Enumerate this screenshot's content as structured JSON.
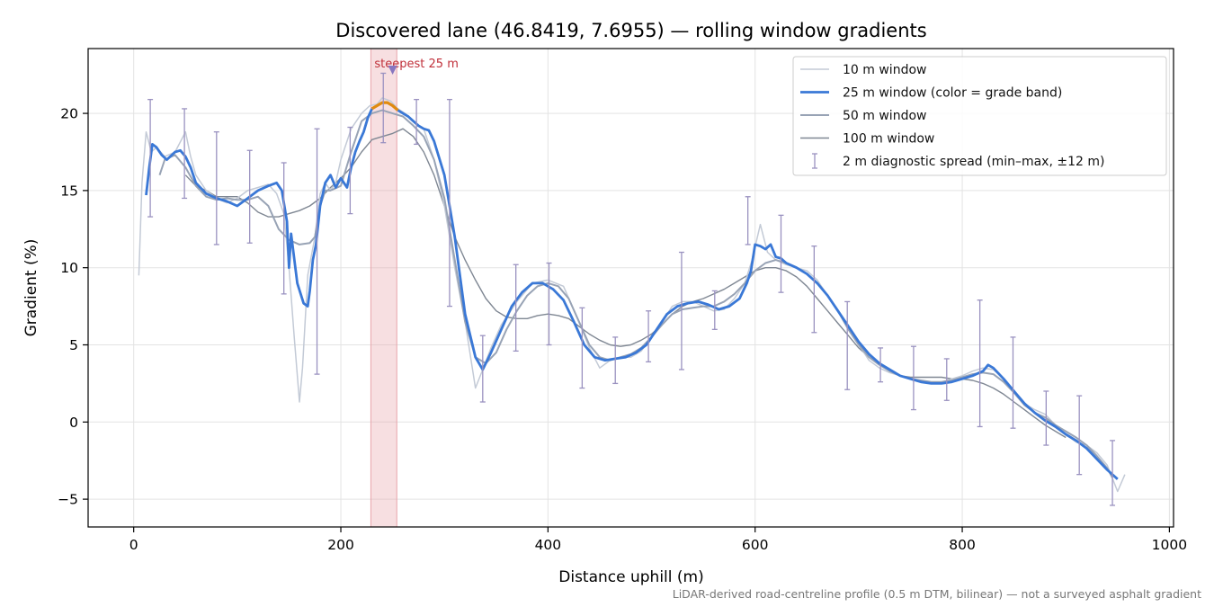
{
  "chart_data": {
    "type": "line",
    "title": "Discovered lane (46.8419, 7.6955) — rolling window gradients",
    "xlabel": "Distance uphill (m)",
    "ylabel": "Gradient (%)",
    "xlim": [
      -44,
      1004
    ],
    "ylim": [
      -6.8,
      24.2
    ],
    "xticks": [
      0,
      200,
      400,
      600,
      800,
      1000
    ],
    "yticks": [
      -5,
      0,
      5,
      10,
      15,
      20
    ],
    "xtick_labels": [
      "0",
      "200",
      "400",
      "600",
      "800",
      "1000"
    ],
    "ytick_labels": [
      "−5",
      "0",
      "5",
      "10",
      "15",
      "20"
    ],
    "grid": true,
    "legend_position": "top-right",
    "colors": {
      "w10": "#c3cad6",
      "w25": "#3a78d6",
      "w25_steep": "#e08a10",
      "w50": "#98a3b5",
      "w100": "#7f8793",
      "errorbar": "#9a92c0",
      "highlight": "#e8a3aa",
      "marker": "#8877c0"
    },
    "highlight_band": {
      "x_start": 229,
      "x_end": 254,
      "label": "steepest 25 m"
    },
    "steepest_marker": {
      "x": 250,
      "y": 22.8
    },
    "series": [
      {
        "name": "10 m window",
        "x": [
          5,
          8,
          12,
          17,
          22,
          30,
          40,
          50,
          55,
          60,
          70,
          80,
          90,
          100,
          110,
          120,
          130,
          138,
          145,
          150,
          155,
          160,
          163,
          168,
          175,
          180,
          185,
          190,
          195,
          200,
          210,
          220,
          228,
          235,
          240,
          248,
          255,
          262,
          270,
          280,
          290,
          300,
          310,
          320,
          330,
          337,
          345,
          355,
          370,
          385,
          400,
          415,
          430,
          440,
          450,
          460,
          470,
          480,
          490,
          500,
          510,
          520,
          530,
          540,
          550,
          560,
          570,
          580,
          590,
          597,
          605,
          612,
          620,
          630,
          640,
          650,
          660,
          670,
          680,
          690,
          700,
          710,
          720,
          730,
          740,
          750,
          760,
          770,
          780,
          790,
          800,
          810,
          820,
          830,
          840,
          850,
          860,
          870,
          880,
          890,
          900,
          910,
          920,
          930,
          940,
          950,
          957
        ],
        "y": [
          9.5,
          15.5,
          18.8,
          17.5,
          17.8,
          17.2,
          17.5,
          18.8,
          17.2,
          16.0,
          15.0,
          14.5,
          14.2,
          14.5,
          15.0,
          15.2,
          15.4,
          14.8,
          13.5,
          10.0,
          5.5,
          1.3,
          3.5,
          9.5,
          12.0,
          14.8,
          15.5,
          15.0,
          15.5,
          17.0,
          19.0,
          20.0,
          20.5,
          20.6,
          21.0,
          20.8,
          20.3,
          20.0,
          19.5,
          19.0,
          17.0,
          14.0,
          10.0,
          6.5,
          2.2,
          3.4,
          4.8,
          6.3,
          7.8,
          9.0,
          9.2,
          8.8,
          6.5,
          4.8,
          3.5,
          4.0,
          4.2,
          4.2,
          4.6,
          5.5,
          6.5,
          7.5,
          7.8,
          7.8,
          7.5,
          7.2,
          7.3,
          8.0,
          9.0,
          10.5,
          12.8,
          11.0,
          10.5,
          10.2,
          10.0,
          9.8,
          9.2,
          8.2,
          7.2,
          6.0,
          5.0,
          4.0,
          3.5,
          3.2,
          3.0,
          2.8,
          2.6,
          2.5,
          2.6,
          2.8,
          3.0,
          3.3,
          3.5,
          3.4,
          2.8,
          2.0,
          1.2,
          0.8,
          0.5,
          -0.2,
          -0.8,
          -1.3,
          -1.5,
          -2.0,
          -2.8,
          -4.5,
          -3.4
        ]
      },
      {
        "name": "25 m window (color = grade band)",
        "x": [
          12,
          15,
          18,
          22,
          27,
          32,
          40,
          45,
          50,
          55,
          60,
          70,
          80,
          90,
          100,
          110,
          120,
          130,
          138,
          143,
          148,
          150,
          152,
          158,
          164,
          168,
          170,
          173,
          176,
          180,
          185,
          190,
          195,
          200,
          206,
          210,
          214,
          218,
          222,
          226,
          230,
          235,
          240,
          245,
          250,
          255,
          260,
          265,
          270,
          275,
          280,
          285,
          290,
          300,
          310,
          320,
          330,
          337,
          345,
          355,
          365,
          375,
          385,
          395,
          405,
          415,
          425,
          435,
          445,
          455,
          465,
          475,
          485,
          495,
          505,
          515,
          525,
          535,
          545,
          555,
          565,
          575,
          585,
          592,
          596,
          600,
          605,
          610,
          615,
          620,
          625,
          630,
          640,
          650,
          660,
          670,
          680,
          690,
          700,
          710,
          720,
          730,
          740,
          750,
          760,
          770,
          780,
          790,
          800,
          810,
          820,
          825,
          830,
          840,
          850,
          860,
          870,
          880,
          890,
          900,
          910,
          920,
          930,
          940,
          950
        ],
        "y": [
          14.7,
          16.5,
          18.0,
          17.8,
          17.3,
          17.0,
          17.5,
          17.6,
          17.2,
          16.5,
          15.5,
          14.8,
          14.5,
          14.3,
          14.0,
          14.5,
          15.0,
          15.3,
          15.5,
          15.0,
          13.0,
          10.0,
          12.2,
          9.0,
          7.7,
          7.5,
          8.5,
          10.5,
          11.5,
          14.0,
          15.5,
          16.0,
          15.2,
          15.8,
          15.2,
          16.5,
          17.5,
          18.2,
          18.8,
          19.7,
          20.3,
          20.5,
          20.7,
          20.7,
          20.5,
          20.2,
          20.0,
          19.8,
          19.5,
          19.2,
          19.0,
          18.9,
          18.2,
          16.0,
          12.0,
          7.0,
          4.2,
          3.4,
          4.5,
          6.0,
          7.5,
          8.4,
          9.0,
          9.0,
          8.6,
          7.9,
          6.5,
          5.0,
          4.2,
          4.0,
          4.1,
          4.2,
          4.5,
          5.0,
          6.0,
          7.0,
          7.5,
          7.7,
          7.8,
          7.6,
          7.3,
          7.5,
          8.0,
          9.0,
          9.8,
          11.5,
          11.4,
          11.2,
          11.5,
          10.7,
          10.6,
          10.3,
          10.0,
          9.6,
          9.0,
          8.2,
          7.2,
          6.2,
          5.2,
          4.4,
          3.8,
          3.4,
          3.0,
          2.8,
          2.6,
          2.5,
          2.5,
          2.6,
          2.8,
          3.0,
          3.3,
          3.7,
          3.5,
          2.8,
          2.0,
          1.2,
          0.6,
          0.1,
          -0.3,
          -0.8,
          -1.2,
          -1.7,
          -2.4,
          -3.1,
          -3.7
        ]
      },
      {
        "name": "50 m window",
        "x": [
          25,
          30,
          40,
          50,
          60,
          70,
          80,
          90,
          100,
          110,
          120,
          130,
          140,
          150,
          160,
          170,
          175,
          180,
          185,
          190,
          200,
          210,
          220,
          230,
          240,
          250,
          260,
          270,
          280,
          290,
          300,
          310,
          320,
          330,
          340,
          350,
          360,
          370,
          380,
          390,
          400,
          410,
          420,
          430,
          440,
          450,
          460,
          470,
          480,
          490,
          500,
          510,
          520,
          530,
          540,
          550,
          560,
          570,
          580,
          590,
          600,
          610,
          620,
          630,
          640,
          650,
          660,
          670,
          680,
          690,
          700,
          710,
          720,
          730,
          740,
          750,
          760,
          770,
          780,
          790,
          800,
          810,
          820,
          830,
          840,
          850,
          860,
          870,
          880,
          890,
          900,
          910,
          920,
          930,
          940,
          945
        ],
        "y": [
          16.0,
          17.0,
          17.3,
          16.5,
          15.3,
          14.6,
          14.4,
          14.5,
          14.4,
          14.4,
          14.6,
          14.0,
          12.5,
          11.8,
          11.5,
          11.6,
          12.0,
          14.0,
          15.0,
          15.0,
          15.3,
          17.5,
          19.5,
          20.0,
          20.2,
          20.0,
          19.8,
          19.2,
          18.5,
          17.0,
          14.5,
          10.5,
          6.5,
          4.2,
          3.8,
          4.5,
          6.0,
          7.2,
          8.2,
          8.8,
          9.0,
          8.8,
          8.0,
          6.5,
          5.0,
          4.2,
          4.0,
          4.2,
          4.4,
          4.8,
          5.5,
          6.3,
          7.0,
          7.3,
          7.4,
          7.5,
          7.5,
          7.8,
          8.3,
          9.0,
          9.8,
          10.3,
          10.5,
          10.3,
          10.0,
          9.6,
          9.0,
          8.2,
          7.2,
          6.0,
          5.0,
          4.2,
          3.7,
          3.3,
          3.0,
          2.8,
          2.7,
          2.6,
          2.6,
          2.7,
          2.9,
          3.1,
          3.2,
          3.1,
          2.6,
          1.9,
          1.1,
          0.6,
          0.3,
          -0.2,
          -0.6,
          -1.0,
          -1.5,
          -2.2,
          -3.0,
          -3.6
        ]
      },
      {
        "name": "100 m window",
        "x": [
          50,
          60,
          70,
          80,
          90,
          100,
          110,
          120,
          130,
          140,
          150,
          160,
          170,
          180,
          190,
          200,
          210,
          220,
          230,
          240,
          250,
          260,
          270,
          280,
          290,
          300,
          310,
          320,
          330,
          340,
          350,
          360,
          370,
          380,
          390,
          400,
          410,
          420,
          430,
          440,
          450,
          460,
          470,
          480,
          490,
          500,
          510,
          520,
          530,
          540,
          550,
          560,
          570,
          580,
          590,
          600,
          610,
          620,
          630,
          640,
          650,
          660,
          670,
          680,
          690,
          700,
          710,
          720,
          730,
          740,
          750,
          760,
          770,
          780,
          790,
          800,
          810,
          820,
          830,
          840,
          850,
          860,
          870,
          880,
          890,
          900
        ],
        "y": [
          16.0,
          15.3,
          15.0,
          14.6,
          14.6,
          14.6,
          14.2,
          13.6,
          13.3,
          13.3,
          13.5,
          13.7,
          14.0,
          14.5,
          15.2,
          15.8,
          16.5,
          17.5,
          18.3,
          18.5,
          18.7,
          19.0,
          18.5,
          17.5,
          16.0,
          14.0,
          12.0,
          10.5,
          9.2,
          8.0,
          7.2,
          6.8,
          6.7,
          6.7,
          6.9,
          7.0,
          6.9,
          6.7,
          6.2,
          5.7,
          5.3,
          5.0,
          4.9,
          5.0,
          5.3,
          5.7,
          6.3,
          7.0,
          7.5,
          7.8,
          8.0,
          8.3,
          8.6,
          9.0,
          9.4,
          9.8,
          10.0,
          10.0,
          9.8,
          9.4,
          8.8,
          8.0,
          7.2,
          6.4,
          5.6,
          4.8,
          4.2,
          3.7,
          3.3,
          3.0,
          2.9,
          2.9,
          2.9,
          2.9,
          2.8,
          2.8,
          2.7,
          2.5,
          2.2,
          1.8,
          1.3,
          0.8,
          0.3,
          -0.2,
          -0.6,
          -1.0
        ]
      }
    ],
    "errorbars": {
      "name": "2 m diagnostic spread (min–max, ±12 m)",
      "x": [
        16,
        49,
        80,
        112,
        145,
        177,
        209,
        241,
        273,
        305,
        337,
        369,
        401,
        433,
        465,
        497,
        529,
        561,
        593,
        625,
        657,
        689,
        721,
        753,
        785,
        817,
        849,
        881,
        913,
        945
      ],
      "low": [
        13.3,
        14.5,
        11.5,
        11.6,
        8.3,
        3.1,
        13.5,
        18.1,
        18.0,
        7.5,
        1.3,
        4.6,
        5.0,
        2.2,
        2.5,
        3.9,
        3.4,
        6.0,
        11.5,
        8.4,
        5.8,
        2.1,
        2.6,
        0.8,
        1.4,
        -0.3,
        -0.4,
        -1.5,
        -3.4,
        -5.4
      ],
      "high": [
        20.9,
        20.3,
        18.8,
        17.6,
        16.8,
        19.0,
        19.1,
        22.6,
        20.9,
        20.9,
        5.6,
        10.2,
        10.3,
        7.4,
        5.5,
        7.2,
        11.0,
        8.5,
        14.6,
        13.4,
        11.4,
        7.8,
        4.8,
        4.9,
        4.1,
        7.9,
        5.5,
        2.0,
        1.7,
        -1.2
      ]
    },
    "legend_entries": [
      "10 m window",
      "25 m window (color = grade band)",
      "50 m window",
      "100 m window",
      "2 m diagnostic spread (min–max, ±12 m)"
    ],
    "footnote": "LiDAR-derived road-centreline profile (0.5 m DTM, bilinear) — not a surveyed asphalt gradient"
  }
}
